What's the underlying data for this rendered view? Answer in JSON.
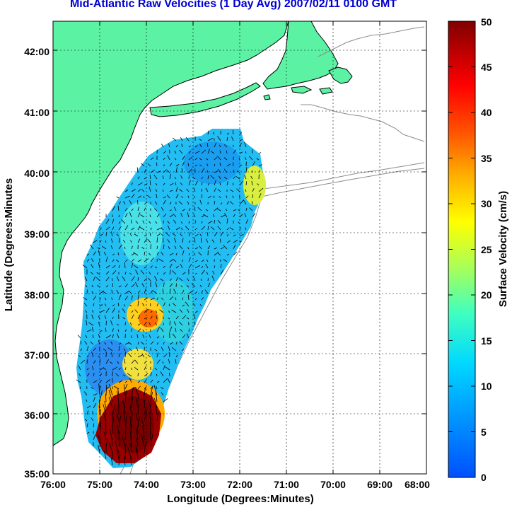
{
  "title": "Mid-Atlantic Raw Velocities (1 Day Avg) 2007/02/11 0100 GMT",
  "map": {
    "xlabel": "Longitude (Degrees:Minutes)",
    "ylabel": "Latitude (Degrees:Minutes",
    "lon_range": [
      -76,
      -68
    ],
    "lat_range": [
      35,
      42.5
    ],
    "x_ticks": [
      "76:00",
      "75:00",
      "74:00",
      "73:00",
      "72:00",
      "71:00",
      "70:00",
      "69:00",
      "68:00"
    ],
    "y_ticks": [
      "35:00",
      "36:00",
      "37:00",
      "38:00",
      "39:00",
      "40:00",
      "41:00",
      "42:00"
    ],
    "grid": true,
    "land_color": "#5cf2a4"
  },
  "colorbar": {
    "label": "Surface Velocity (cm/s)",
    "range": [
      0,
      50
    ],
    "ticks": [
      "0",
      "5",
      "10",
      "15",
      "20",
      "25",
      "30",
      "35",
      "40",
      "45",
      "50"
    ]
  }
}
